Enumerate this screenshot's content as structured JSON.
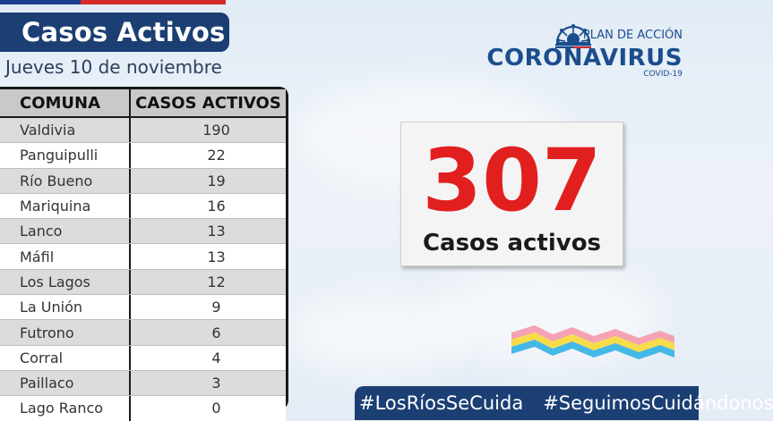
{
  "title": "Casos Activos",
  "date": "Jueves 10 de noviembre",
  "table": {
    "headers": [
      "COMUNA",
      "CASOS ACTIVOS"
    ],
    "rows": [
      {
        "comuna": "Valdivia",
        "casos": "190"
      },
      {
        "comuna": "Panguipulli",
        "casos": "22"
      },
      {
        "comuna": "Río Bueno",
        "casos": "19"
      },
      {
        "comuna": "Mariquina",
        "casos": "16"
      },
      {
        "comuna": "Lanco",
        "casos": "13"
      },
      {
        "comuna": "Máfil",
        "casos": "13"
      },
      {
        "comuna": "Los Lagos",
        "casos": "12"
      },
      {
        "comuna": "La Unión",
        "casos": "9"
      },
      {
        "comuna": "Futrono",
        "casos": "6"
      },
      {
        "comuna": "Corral",
        "casos": "4"
      },
      {
        "comuna": "Paillaco",
        "casos": "3"
      },
      {
        "comuna": "Lago Ranco",
        "casos": "0"
      }
    ]
  },
  "logo": {
    "plan": "PLAN DE ACCIÓN",
    "name": "CORONAVIRUS",
    "sub": "COVID-19",
    "icon": "government-virus-icon"
  },
  "total": {
    "value": "307",
    "label": "Casos activos"
  },
  "hashtags": [
    "#LosRíosSeCuida",
    "#SeguimosCuidándonos"
  ],
  "colors": {
    "navy": "#1b3f73",
    "red": "#e21f1f",
    "logo_blue": "#1b4d8c"
  }
}
